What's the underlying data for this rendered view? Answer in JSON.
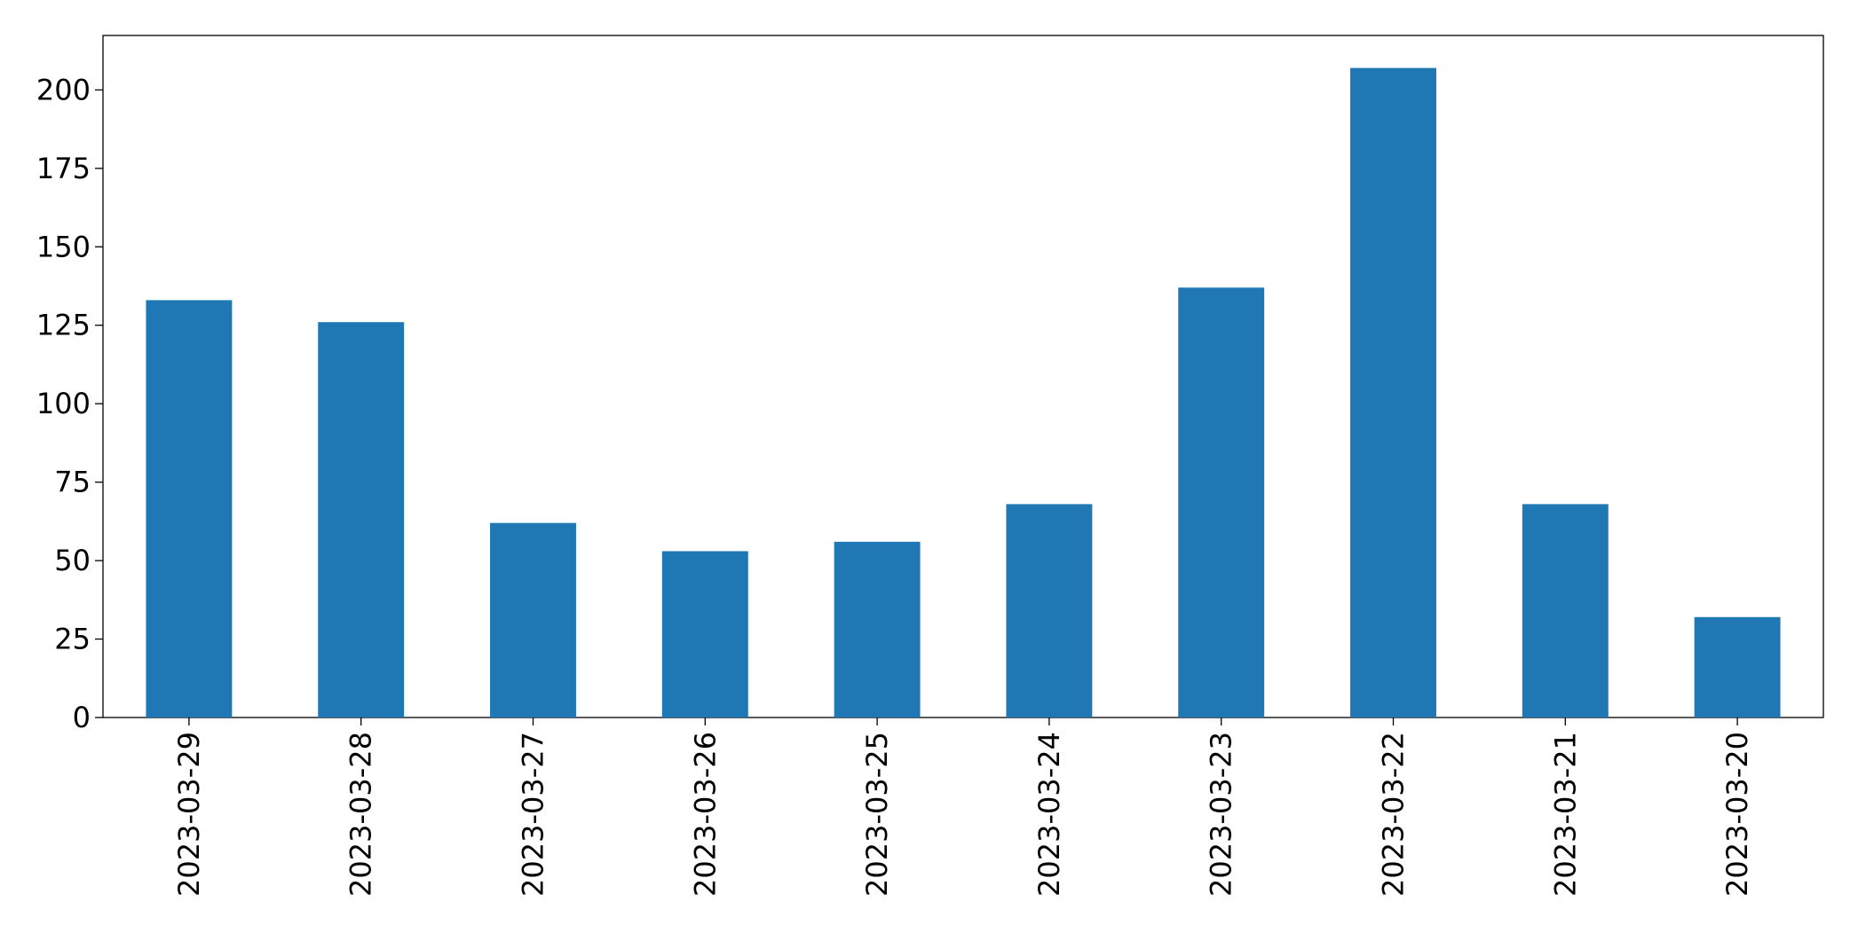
{
  "chart_data": {
    "type": "bar",
    "categories": [
      "2023-03-29",
      "2023-03-28",
      "2023-03-27",
      "2023-03-26",
      "2023-03-25",
      "2023-03-24",
      "2023-03-23",
      "2023-03-22",
      "2023-03-21",
      "2023-03-20"
    ],
    "values": [
      133,
      126,
      62,
      53,
      56,
      68,
      137,
      207,
      68,
      32
    ],
    "color": "#1f77b4",
    "ylim": [
      0,
      217.35
    ],
    "yticks": [
      0,
      25,
      50,
      75,
      100,
      125,
      150,
      175,
      200
    ],
    "grid": false
  }
}
